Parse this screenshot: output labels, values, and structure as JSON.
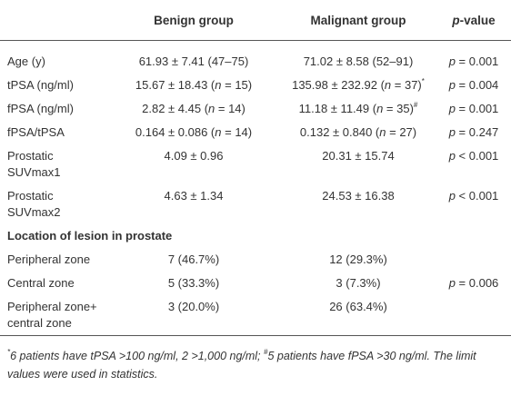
{
  "header": {
    "columns": [
      "Benign group",
      "Malignant group",
      "p-value"
    ]
  },
  "table": {
    "rows": [
      {
        "label": [
          "Age (y)"
        ],
        "benign": {
          "text": "61.93 ± 7.41 (47–75)"
        },
        "malignant": {
          "text": "71.02 ± 8.58 (52–91)"
        },
        "p": "p = 0.001"
      },
      {
        "label": [
          "tPSA (ng/ml)"
        ],
        "benign": {
          "text": "15.67 ± 18.43 (n = 15)"
        },
        "malignant": {
          "text": "135.98 ± 232.92 (n = 37)",
          "sup": "*"
        },
        "p": "p = 0.004"
      },
      {
        "label": [
          "fPSA (ng/ml)"
        ],
        "benign": {
          "text": "2.82 ± 4.45 (n = 14)"
        },
        "malignant": {
          "text": "11.18 ± 11.49 (n = 35)",
          "sup": "#"
        },
        "p": "p = 0.001"
      },
      {
        "label": [
          "fPSA/tPSA"
        ],
        "benign": {
          "text": "0.164 ± 0.086 (n = 14)"
        },
        "malignant": {
          "text": "0.132 ± 0.840 (n = 27)"
        },
        "p": "p = 0.247"
      },
      {
        "label": [
          "Prostatic",
          "SUVmax1"
        ],
        "benign": {
          "text": "4.09 ± 0.96"
        },
        "malignant": {
          "text": "20.31 ± 15.74"
        },
        "p": "p < 0.001"
      },
      {
        "label": [
          "Prostatic",
          "SUVmax2"
        ],
        "benign": {
          "text": "4.63 ± 1.34"
        },
        "malignant": {
          "text": "24.53 ± 16.38"
        },
        "p": "p < 0.001"
      }
    ],
    "section": {
      "title": "Location of lesion in prostate",
      "rows": [
        {
          "label": [
            "Peripheral zone"
          ],
          "benign": {
            "text": "7 (46.7%)"
          },
          "malignant": {
            "text": "12 (29.3%)"
          }
        },
        {
          "label": [
            "Central zone"
          ],
          "benign": {
            "text": "5 (33.3%)"
          },
          "malignant": {
            "text": "3 (7.3%)"
          },
          "p": "p = 0.006"
        },
        {
          "label": [
            "Peripheral zone+",
            "central zone"
          ],
          "benign": {
            "text": "3 (20.0%)"
          },
          "malignant": {
            "text": "26 (63.4%)"
          }
        }
      ]
    }
  },
  "footnote": [
    {
      "sup": "*",
      "text": "6 patients have tPSA >100 ng/ml, 2 >1,000 ng/ml; "
    },
    {
      "sup": "#",
      "text": "5 patients have fPSA >30 ng/ml. The limit values were used in statistics."
    }
  ]
}
